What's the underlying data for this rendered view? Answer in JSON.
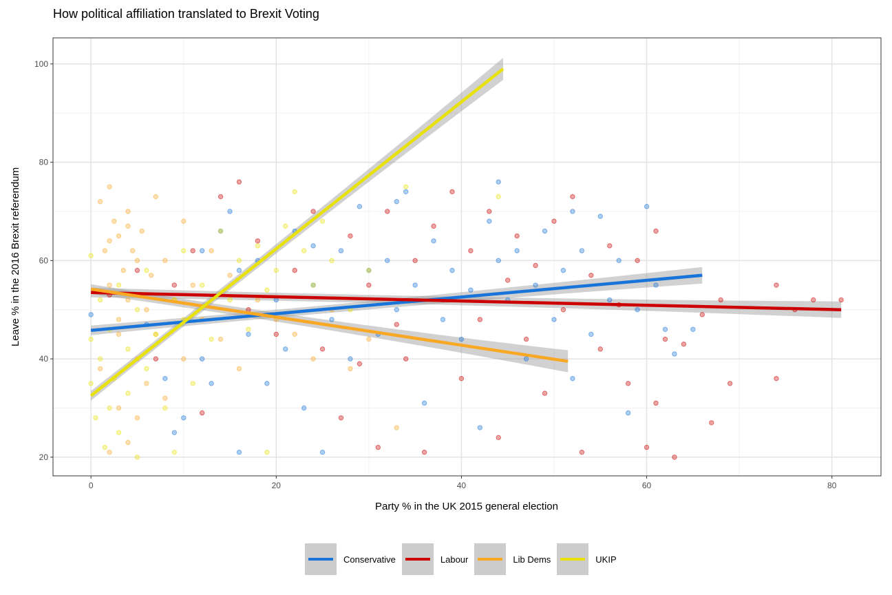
{
  "chart_data": {
    "type": "scatter",
    "title": "How political affiliation translated to Brexit Voting",
    "xlabel": "Party % in the UK 2015 general election",
    "ylabel": "Leave % in the 2016 Brexit referendum",
    "xlim": [
      -4.1,
      85.3
    ],
    "ylim": [
      16.2,
      105.3
    ],
    "xticks": [
      0,
      20,
      40,
      60,
      80
    ],
    "yticks": [
      20,
      40,
      60,
      80,
      100
    ],
    "grid": true,
    "legend_position": "bottom",
    "series": [
      {
        "name": "Conservative",
        "color": "#1874d9",
        "fit": {
          "x": [
            0,
            66
          ],
          "y": [
            45.8,
            57.0
          ]
        },
        "points": [
          [
            0,
            49
          ],
          [
            6,
            47
          ],
          [
            8,
            36
          ],
          [
            9,
            25
          ],
          [
            10,
            28
          ],
          [
            12,
            40
          ],
          [
            12,
            62
          ],
          [
            13,
            35
          ],
          [
            14,
            66
          ],
          [
            15,
            70
          ],
          [
            16,
            58
          ],
          [
            16,
            21
          ],
          [
            17,
            45
          ],
          [
            18,
            60
          ],
          [
            19,
            35
          ],
          [
            20,
            52
          ],
          [
            21,
            42
          ],
          [
            22,
            66
          ],
          [
            23,
            30
          ],
          [
            24,
            55
          ],
          [
            25,
            21
          ],
          [
            26,
            48
          ],
          [
            27,
            62
          ],
          [
            28,
            40
          ],
          [
            29,
            71
          ],
          [
            30,
            58
          ],
          [
            31,
            45
          ],
          [
            32,
            60
          ],
          [
            33,
            50
          ],
          [
            34,
            74
          ],
          [
            35,
            55
          ],
          [
            36,
            31
          ],
          [
            37,
            64
          ],
          [
            38,
            48
          ],
          [
            39,
            58
          ],
          [
            40,
            44
          ],
          [
            41,
            54
          ],
          [
            42,
            26
          ],
          [
            43,
            68
          ],
          [
            44,
            76
          ],
          [
            45,
            52
          ],
          [
            46,
            62
          ],
          [
            47,
            40
          ],
          [
            48,
            55
          ],
          [
            49,
            66
          ],
          [
            50,
            48
          ],
          [
            51,
            58
          ],
          [
            52,
            36
          ],
          [
            53,
            62
          ],
          [
            54,
            45
          ],
          [
            55,
            69
          ],
          [
            56,
            52
          ],
          [
            57,
            60
          ],
          [
            58,
            29
          ],
          [
            59,
            50
          ],
          [
            60,
            71
          ],
          [
            61,
            55
          ],
          [
            62,
            46
          ],
          [
            63,
            41
          ],
          [
            65,
            46
          ],
          [
            33,
            72
          ],
          [
            44,
            60
          ],
          [
            52,
            70
          ],
          [
            24,
            63
          ]
        ]
      },
      {
        "name": "Labour",
        "color": "#cc0000",
        "fit": {
          "x": [
            0,
            81
          ],
          "y": [
            53.5,
            50.0
          ]
        },
        "points": [
          [
            2,
            53
          ],
          [
            5,
            58
          ],
          [
            7,
            40
          ],
          [
            9,
            55
          ],
          [
            11,
            62
          ],
          [
            12,
            29
          ],
          [
            14,
            73
          ],
          [
            16,
            76
          ],
          [
            17,
            50
          ],
          [
            18,
            64
          ],
          [
            20,
            45
          ],
          [
            22,
            58
          ],
          [
            24,
            70
          ],
          [
            25,
            42
          ],
          [
            27,
            28
          ],
          [
            28,
            65
          ],
          [
            29,
            39
          ],
          [
            30,
            55
          ],
          [
            31,
            22
          ],
          [
            32,
            70
          ],
          [
            33,
            47
          ],
          [
            34,
            40
          ],
          [
            35,
            60
          ],
          [
            36,
            21
          ],
          [
            37,
            67
          ],
          [
            38,
            52
          ],
          [
            39,
            74
          ],
          [
            40,
            36
          ],
          [
            41,
            62
          ],
          [
            42,
            48
          ],
          [
            43,
            70
          ],
          [
            44,
            24
          ],
          [
            45,
            56
          ],
          [
            46,
            65
          ],
          [
            47,
            44
          ],
          [
            48,
            59
          ],
          [
            49,
            33
          ],
          [
            50,
            68
          ],
          [
            51,
            50
          ],
          [
            52,
            73
          ],
          [
            53,
            21
          ],
          [
            54,
            57
          ],
          [
            55,
            42
          ],
          [
            56,
            63
          ],
          [
            57,
            51
          ],
          [
            58,
            35
          ],
          [
            59,
            60
          ],
          [
            60,
            22
          ],
          [
            61,
            66
          ],
          [
            62,
            44
          ],
          [
            63,
            20
          ],
          [
            64,
            43
          ],
          [
            66,
            49
          ],
          [
            67,
            27
          ],
          [
            68,
            52
          ],
          [
            69,
            35
          ],
          [
            74,
            55
          ],
          [
            74,
            36
          ],
          [
            76,
            50
          ],
          [
            78,
            52
          ],
          [
            81,
            52
          ],
          [
            61,
            31
          ]
        ]
      },
      {
        "name": "Lib Dems",
        "color": "#f9a825",
        "fit": {
          "x": [
            0,
            51.5
          ],
          "y": [
            54.2,
            39.5
          ]
        },
        "points": [
          [
            1,
            72
          ],
          [
            1.5,
            62
          ],
          [
            2,
            75
          ],
          [
            2,
            55
          ],
          [
            2.5,
            68
          ],
          [
            3,
            48
          ],
          [
            3,
            30
          ],
          [
            3,
            65
          ],
          [
            3.5,
            58
          ],
          [
            4,
            70
          ],
          [
            4,
            23
          ],
          [
            4,
            52
          ],
          [
            4.5,
            62
          ],
          [
            5,
            40
          ],
          [
            5,
            60
          ],
          [
            5,
            28
          ],
          [
            5.5,
            66
          ],
          [
            6,
            50
          ],
          [
            6,
            35
          ],
          [
            6.5,
            57
          ],
          [
            7,
            73
          ],
          [
            7,
            45
          ],
          [
            8,
            60
          ],
          [
            8,
            32
          ],
          [
            9,
            52
          ],
          [
            10,
            40
          ],
          [
            10,
            68
          ],
          [
            11,
            55
          ],
          [
            12,
            48
          ],
          [
            13,
            62
          ],
          [
            14,
            44
          ],
          [
            15,
            57
          ],
          [
            16,
            38
          ],
          [
            18,
            52
          ],
          [
            20,
            48
          ],
          [
            22,
            45
          ],
          [
            24,
            40
          ],
          [
            26,
            50
          ],
          [
            28,
            38
          ],
          [
            30,
            44
          ],
          [
            33,
            26
          ],
          [
            2,
            21
          ],
          [
            1,
            38
          ],
          [
            3,
            45
          ],
          [
            2,
            64
          ],
          [
            4,
            67
          ]
        ]
      },
      {
        "name": "UKIP",
        "color": "#e8e10c",
        "fit": {
          "x": [
            0,
            44.5
          ],
          "y": [
            32.5,
            99.0
          ]
        },
        "points": [
          [
            0,
            61
          ],
          [
            0,
            44
          ],
          [
            0,
            35
          ],
          [
            0.5,
            28
          ],
          [
            1,
            40
          ],
          [
            1,
            52
          ],
          [
            1.5,
            22
          ],
          [
            2,
            30
          ],
          [
            2,
            46
          ],
          [
            2.5,
            36
          ],
          [
            3,
            55
          ],
          [
            3,
            25
          ],
          [
            4,
            42
          ],
          [
            4,
            33
          ],
          [
            5,
            50
          ],
          [
            5,
            20
          ],
          [
            6,
            38
          ],
          [
            6,
            58
          ],
          [
            7,
            45
          ],
          [
            8,
            30
          ],
          [
            9,
            52
          ],
          [
            10,
            48
          ],
          [
            10,
            62
          ],
          [
            11,
            35
          ],
          [
            12,
            55
          ],
          [
            13,
            44
          ],
          [
            14,
            66
          ],
          [
            15,
            52
          ],
          [
            16,
            60
          ],
          [
            17,
            46
          ],
          [
            18,
            63
          ],
          [
            19,
            54
          ],
          [
            20,
            58
          ],
          [
            21,
            67
          ],
          [
            22,
            74
          ],
          [
            23,
            62
          ],
          [
            24,
            55
          ],
          [
            25,
            68
          ],
          [
            26,
            60
          ],
          [
            28,
            50
          ],
          [
            30,
            58
          ],
          [
            34,
            75
          ],
          [
            44,
            73
          ],
          [
            19,
            21
          ],
          [
            9,
            21
          ]
        ]
      }
    ]
  }
}
